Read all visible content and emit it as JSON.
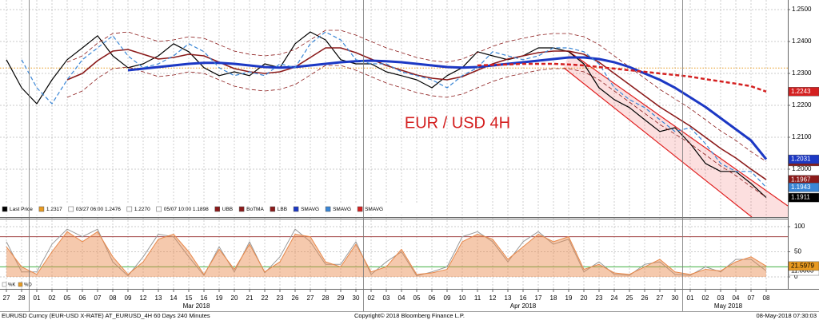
{
  "chart_data": {
    "type": "line",
    "title": "EUR / USD 4H",
    "categories": [
      "27",
      "28",
      "01",
      "02",
      "05",
      "06",
      "07",
      "08",
      "09",
      "12",
      "13",
      "14",
      "15",
      "16",
      "19",
      "20",
      "21",
      "22",
      "23",
      "26",
      "27",
      "28",
      "29",
      "30",
      "02",
      "03",
      "04",
      "05",
      "06",
      "09",
      "10",
      "11",
      "12",
      "13",
      "16",
      "17",
      "18",
      "19",
      "20",
      "23",
      "24",
      "25",
      "26",
      "27",
      "30",
      "01",
      "02",
      "03",
      "04",
      "07",
      "08"
    ],
    "months": [
      "Mar 2018",
      "Apr 2018",
      "May 2018"
    ],
    "ylim": [
      1.185,
      1.253
    ],
    "yticks": [
      {
        "value": 1.25,
        "label": "1.2500"
      },
      {
        "value": 1.24,
        "label": "1.2400"
      },
      {
        "value": 1.23,
        "label": "1.2300"
      },
      {
        "value": 1.22,
        "label": "1.2200"
      },
      {
        "value": 1.21,
        "label": "1.2100"
      },
      {
        "value": 1.2,
        "label": "1.2000"
      }
    ],
    "grid": true,
    "reference_line": 1.2317,
    "reference_color": "#e89a20",
    "legend_stats": [
      "03/27 06:00 1.2476",
      "1.2270",
      "05/07 10:00 1.1898"
    ],
    "series": [
      {
        "name": "Last Price",
        "color": "#000000",
        "width": 1.2,
        "dashed": false,
        "tag": true,
        "values": [
          1.2343,
          1.2255,
          1.2205,
          1.228,
          1.2343,
          1.238,
          1.2418,
          1.2355,
          1.2318,
          1.233,
          1.2355,
          1.2393,
          1.2368,
          1.2318,
          1.2293,
          1.2305,
          1.2293,
          1.233,
          1.2318,
          1.2393,
          1.243,
          1.2405,
          1.2343,
          1.233,
          1.233,
          1.2305,
          1.2293,
          1.228,
          1.2255,
          1.2293,
          1.2318,
          1.2368,
          1.2355,
          1.2343,
          1.2355,
          1.238,
          1.238,
          1.2368,
          1.233,
          1.2255,
          1.2218,
          1.2193,
          1.2155,
          1.2118,
          1.213,
          1.208,
          1.2018,
          1.1993,
          1.1993,
          1.1955,
          1.1911
        ]
      },
      {
        "name": "UBB",
        "color": "#8b1a1a",
        "width": 0.8,
        "dashed": true,
        "tag": true,
        "values": [
          null,
          null,
          null,
          null,
          1.2335,
          1.2355,
          1.2395,
          1.2425,
          1.243,
          1.2415,
          1.24,
          1.2405,
          1.2415,
          1.241,
          1.239,
          1.237,
          1.236,
          1.2355,
          1.236,
          1.2375,
          1.2405,
          1.2435,
          1.2435,
          1.242,
          1.24,
          1.238,
          1.2365,
          1.235,
          1.234,
          1.2335,
          1.2345,
          1.2365,
          1.2385,
          1.24,
          1.241,
          1.242,
          1.2425,
          1.2425,
          1.2415,
          1.239,
          1.2355,
          1.232,
          1.2285,
          1.225,
          1.222,
          1.219,
          1.2155,
          1.212,
          1.209,
          1.2055,
          1.2024
        ]
      },
      {
        "name": "BoTMA",
        "color": "#8b1a1a",
        "width": 1.6,
        "dashed": false,
        "tag": true,
        "values": [
          null,
          null,
          null,
          null,
          1.228,
          1.23,
          1.234,
          1.237,
          1.2375,
          1.236,
          1.2345,
          1.235,
          1.236,
          1.2355,
          1.2335,
          1.2315,
          1.2305,
          1.23,
          1.2305,
          1.232,
          1.235,
          1.238,
          1.238,
          1.2365,
          1.2345,
          1.2325,
          1.231,
          1.2295,
          1.2285,
          1.228,
          1.229,
          1.231,
          1.233,
          1.2345,
          1.2355,
          1.2365,
          1.237,
          1.237,
          1.236,
          1.2335,
          1.23,
          1.2265,
          1.223,
          1.2195,
          1.2165,
          1.2135,
          1.21,
          1.2065,
          1.2035,
          1.2,
          1.1967
        ]
      },
      {
        "name": "LBB",
        "color": "#8b1a1a",
        "width": 0.8,
        "dashed": true,
        "tag": false,
        "values": [
          null,
          null,
          null,
          null,
          1.2225,
          1.2245,
          1.2285,
          1.2315,
          1.232,
          1.2305,
          1.229,
          1.2295,
          1.2305,
          1.23,
          1.228,
          1.226,
          1.225,
          1.2245,
          1.225,
          1.2265,
          1.2295,
          1.2325,
          1.2325,
          1.231,
          1.229,
          1.227,
          1.2255,
          1.224,
          1.223,
          1.2225,
          1.2235,
          1.2255,
          1.2275,
          1.229,
          1.23,
          1.231,
          1.2315,
          1.2315,
          1.2305,
          1.228,
          1.2245,
          1.221,
          1.2175,
          1.214,
          1.211,
          1.208,
          1.2045,
          1.201,
          1.198,
          1.1945,
          1.1912
        ]
      },
      {
        "name": "SMAVG",
        "color": "#1c38c4",
        "width": 3,
        "dashed": false,
        "tag": true,
        "values": [
          null,
          null,
          null,
          null,
          null,
          null,
          null,
          null,
          1.231,
          1.2315,
          1.232,
          1.2325,
          1.233,
          1.2333,
          1.2333,
          1.233,
          1.2325,
          1.232,
          1.2318,
          1.232,
          1.2325,
          1.233,
          1.2335,
          1.2338,
          1.234,
          1.2338,
          1.2335,
          1.233,
          1.2325,
          1.232,
          1.2318,
          1.232,
          1.2325,
          1.233,
          1.2335,
          1.234,
          1.2345,
          1.235,
          1.235,
          1.2345,
          1.2335,
          1.232,
          1.23,
          1.228,
          1.2255,
          1.2225,
          1.2195,
          1.216,
          1.2125,
          1.209,
          1.2031
        ]
      },
      {
        "name": "SMAVG",
        "color": "#3a86d6",
        "width": 1.2,
        "dashed": true,
        "tag": true,
        "values": [
          null,
          1.2343,
          1.2255,
          1.2205,
          1.228,
          1.2343,
          1.238,
          1.2418,
          1.2355,
          1.2318,
          1.233,
          1.2355,
          1.2393,
          1.2368,
          1.2318,
          1.2293,
          1.2305,
          1.2293,
          1.233,
          1.2318,
          1.2393,
          1.243,
          1.2405,
          1.2343,
          1.233,
          1.233,
          1.2305,
          1.2293,
          1.228,
          1.2255,
          1.2293,
          1.2318,
          1.2368,
          1.2355,
          1.2343,
          1.2355,
          1.238,
          1.238,
          1.2368,
          1.233,
          1.2255,
          1.2218,
          1.2193,
          1.2155,
          1.2118,
          1.213,
          1.208,
          1.2018,
          1.1993,
          1.1993,
          1.1943
        ]
      },
      {
        "name": "SMAVG",
        "color": "#d42020",
        "width": 2.5,
        "dashed": true,
        "tag": true,
        "values": [
          null,
          null,
          null,
          null,
          null,
          null,
          null,
          null,
          null,
          null,
          null,
          null,
          null,
          null,
          null,
          null,
          null,
          null,
          null,
          null,
          null,
          null,
          null,
          null,
          null,
          null,
          null,
          null,
          null,
          null,
          null,
          1.2325,
          1.2327,
          1.2328,
          1.233,
          1.233,
          1.233,
          1.2328,
          1.2325,
          1.232,
          1.2315,
          1.231,
          1.2305,
          1.23,
          1.2295,
          1.229,
          1.2282,
          1.2275,
          1.2268,
          1.226,
          1.2243
        ]
      }
    ],
    "oscillator": {
      "type": "line",
      "ylim": [
        -12.7,
        114.3
      ],
      "yticks": [
        100,
        50,
        0
      ],
      "levels": [
        {
          "value": 80,
          "color": "#a04040"
        },
        {
          "value": 20,
          "color": "#40b040"
        }
      ],
      "series": [
        {
          "name": "%K",
          "color": "#9a9a9a",
          "fill": false,
          "tag_color": "#ffffff",
          "values": [
            70,
            10,
            10,
            65,
            95,
            80,
            95,
            30,
            2,
            40,
            85,
            80,
            40,
            3,
            60,
            10,
            70,
            8,
            40,
            95,
            70,
            25,
            25,
            70,
            5,
            30,
            50,
            2,
            10,
            20,
            80,
            90,
            70,
            30,
            70,
            90,
            65,
            75,
            10,
            30,
            5,
            3,
            25,
            30,
            5,
            3,
            20,
            10,
            35,
            35,
            11.8863
          ]
        },
        {
          "name": "%D",
          "color": "#e8884a",
          "fill": true,
          "tag_color": "#e89a20",
          "values": [
            60,
            20,
            5,
            50,
            90,
            70,
            90,
            40,
            5,
            30,
            75,
            85,
            50,
            5,
            55,
            15,
            65,
            10,
            30,
            85,
            80,
            30,
            20,
            65,
            10,
            20,
            55,
            5,
            8,
            15,
            70,
            85,
            75,
            35,
            60,
            85,
            70,
            80,
            15,
            25,
            8,
            5,
            20,
            35,
            10,
            5,
            15,
            12,
            30,
            40,
            21.5979
          ]
        }
      ]
    }
  },
  "footer": {
    "left": "EURUSD Curncy (EUR-USD X-RATE) AT_EURUSD_4H 60 Days 240 Minutes",
    "center": "Copyright© 2018 Bloomberg Finance L.P.",
    "right": "08-May-2018 07:30:03"
  }
}
